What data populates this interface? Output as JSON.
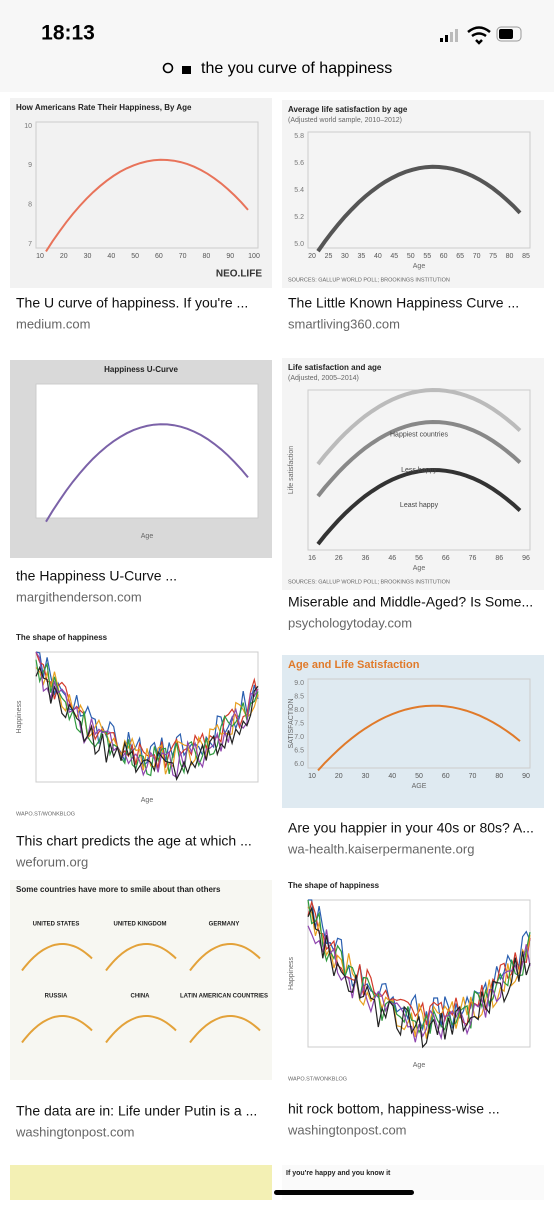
{
  "status": {
    "time": "18:13"
  },
  "search": {
    "query": "the you curve of happiness"
  },
  "results": [
    {
      "caption": "The U curve of happiness. If you're ...",
      "source": "medium.com",
      "thumb": {
        "title": "How Americans Rate Their Happiness, By Age",
        "xticks": [
          "10",
          "20",
          "30",
          "40",
          "50",
          "60",
          "70",
          "80",
          "90",
          "100"
        ],
        "yticks": [
          "10",
          "9",
          "8",
          "7"
        ],
        "labels": [
          "NEO.LIFE"
        ]
      }
    },
    {
      "caption": "The Little Known Happiness Curve ...",
      "source": "smartliving360.com",
      "thumb": {
        "title": "Average life satisfaction by age",
        "subtitle": "(Adjusted world sample, 2010–2012)",
        "xticks": [
          "20",
          "25",
          "30",
          "35",
          "40",
          "45",
          "50",
          "55",
          "60",
          "65",
          "70",
          "75",
          "80",
          "85"
        ],
        "yticks": [
          "5.8",
          "5.6",
          "5.4",
          "5.2",
          "5.0"
        ],
        "labels": [
          "Age",
          "SOURCES: GALLUP WORLD POLL; BROOKINGS INSTITUTION"
        ]
      }
    },
    {
      "caption": "the Happiness U-Curve ...",
      "source": "margithenderson.com",
      "thumb": {
        "title": "Happiness U-Curve",
        "xticks": [],
        "yticks": [],
        "labels": [
          "Age"
        ]
      }
    },
    {
      "caption": "Miserable and Middle-Aged? Is Some...",
      "source": "psychologytoday.com",
      "thumb": {
        "title": "Life satisfaction and age",
        "subtitle": "(Adjusted, 2005–2014)",
        "xticks": [
          "16",
          "26",
          "36",
          "46",
          "56",
          "66",
          "76",
          "86",
          "96"
        ],
        "yticks": [],
        "labels": [
          "Happiest countries",
          "Less happy",
          "Least happy",
          "Life satisfaction",
          "Age",
          "SOURCES: GALLUP WORLD POLL; BROOKINGS INSTITUTION"
        ]
      }
    },
    {
      "caption": "This chart predicts the age at which ...",
      "source": "weforum.org",
      "thumb": {
        "title": "The shape of happiness",
        "xticks": [],
        "yticks": [],
        "labels": [
          "Happiness",
          "Age",
          "WAPO.ST/WONKBLOG"
        ]
      }
    },
    {
      "caption": "Are you happier in your 40s or 80s? A...",
      "source": "wa-health.kaiserpermanente.org",
      "thumb": {
        "title": "Age and Life Satisfaction",
        "xticks": [
          "10",
          "20",
          "30",
          "40",
          "50",
          "60",
          "70",
          "80",
          "90"
        ],
        "yticks": [
          "9.0",
          "8.5",
          "8.0",
          "7.5",
          "7.0",
          "6.5",
          "6.0"
        ],
        "labels": [
          "SATISFACTION",
          "AGE"
        ]
      }
    },
    {
      "caption": "The data are in: Life under Putin is a ...",
      "source": "washingtonpost.com",
      "thumb": {
        "title": "Some countries have more to smile about than others",
        "xticks": [],
        "yticks": [],
        "labels": [
          "UNITED STATES",
          "UNITED KINGDOM",
          "GERMANY",
          "RUSSIA",
          "CHINA",
          "LATIN AMERICAN COUNTRIES"
        ]
      }
    },
    {
      "caption": "hit rock bottom, happiness-wise ...",
      "source": "washingtonpost.com",
      "thumb": {
        "title": "The shape of happiness",
        "xticks": [],
        "yticks": [],
        "labels": [
          "Happiness",
          "Age",
          "WAPO.ST/WONKBLOG"
        ]
      }
    }
  ],
  "partial": {
    "title": "If you're happy and you know it"
  }
}
